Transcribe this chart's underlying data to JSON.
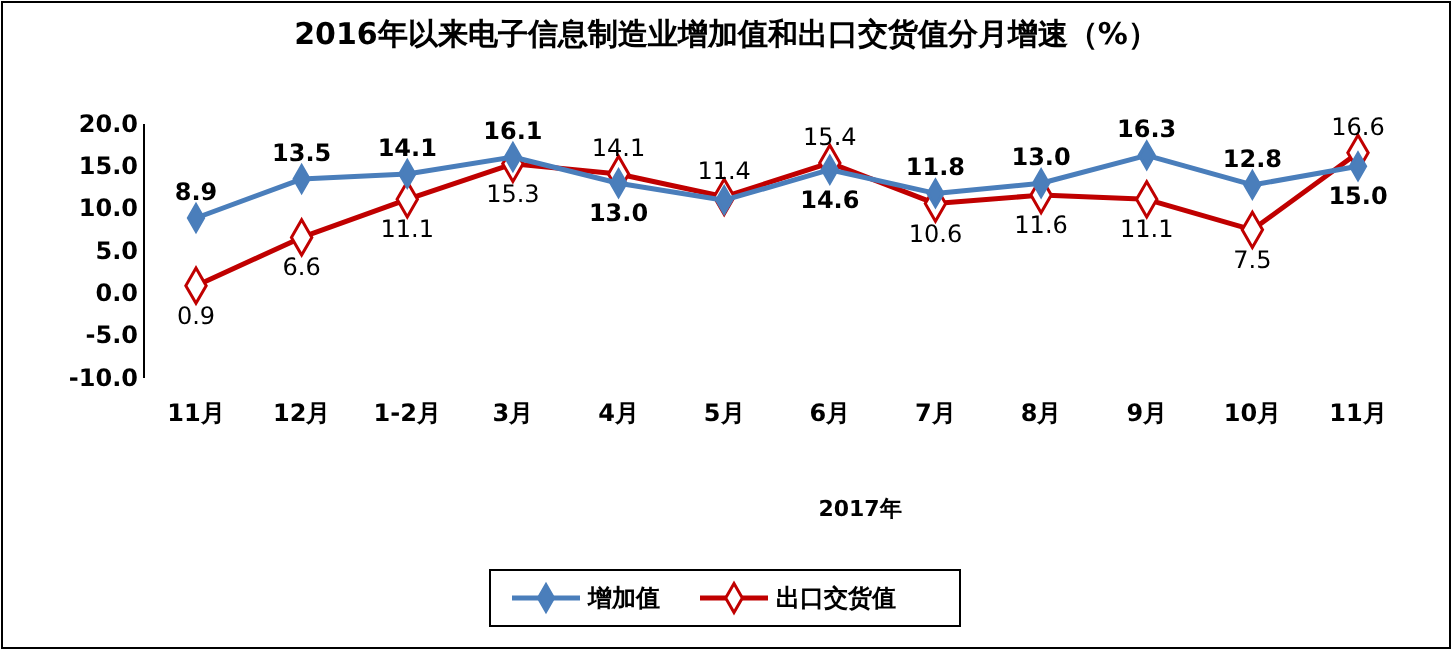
{
  "chart_data": {
    "type": "line",
    "title": "2016年以来电子信息制造业增加值和出口交货值分月增速（%）",
    "categories": [
      "11月",
      "12月",
      "1-2月",
      "3月",
      "4月",
      "5月",
      "6月",
      "7月",
      "8月",
      "9月",
      "10月",
      "11月"
    ],
    "series": [
      {
        "name": "增加值",
        "color": "#4a7ebb",
        "values": [
          8.9,
          13.5,
          14.1,
          16.1,
          13.0,
          11.0,
          14.6,
          11.8,
          13.0,
          16.3,
          12.8,
          15.0
        ],
        "value_labels": [
          "8.9",
          "13.5",
          "14.1",
          "16.1",
          "13.0",
          null,
          "14.6",
          "11.8",
          "13.0",
          "16.3",
          "12.8",
          "15.0"
        ]
      },
      {
        "name": "出口交货值",
        "color": "#c00000",
        "values": [
          0.9,
          6.6,
          11.1,
          15.3,
          14.1,
          11.4,
          15.4,
          10.6,
          11.6,
          11.1,
          7.5,
          16.6
        ],
        "value_labels": [
          "0.9",
          "6.6",
          "11.1",
          "15.3",
          "14.1",
          "11.4",
          "15.4",
          "10.6",
          "11.6",
          "11.1",
          "7.5",
          "16.6"
        ]
      }
    ],
    "ylim": [
      -10,
      20
    ],
    "yticks": [
      {
        "value": -10,
        "label": "-10.0"
      },
      {
        "value": -5,
        "label": "-5.0"
      },
      {
        "value": 0,
        "label": "0.0"
      },
      {
        "value": 5,
        "label": "5.0"
      },
      {
        "value": 10,
        "label": "10.0"
      },
      {
        "value": 15,
        "label": "15.0"
      },
      {
        "value": 20,
        "label": "20.0"
      }
    ],
    "annotations": [
      "2017年"
    ],
    "legend": "bottom",
    "marker": "diamond",
    "line_style": "solid",
    "grid": false
  }
}
